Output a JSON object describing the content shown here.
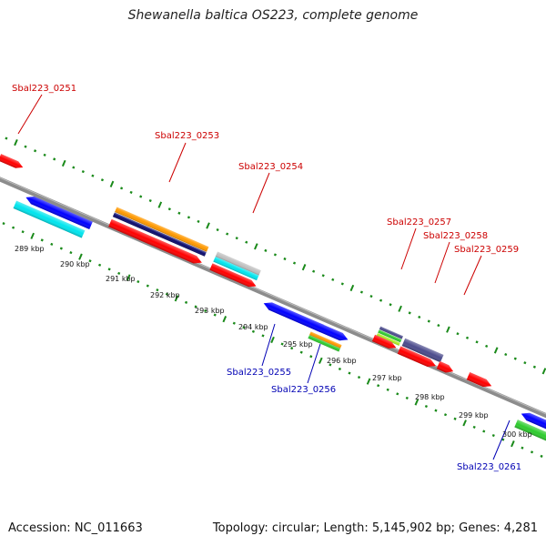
{
  "title": "Shewanella baltica OS223, complete genome",
  "footer": {
    "accession": "Accession: NC_011663",
    "summary": "Topology: circular; Length: 5,145,902 bp; Genes: 4,281"
  },
  "colors": {
    "background": "#ffffff",
    "backbone": "#8c8c8c",
    "tick_marks": "#1a8a1a",
    "label_top": "#cc0000",
    "label_bottom": "#0000b4",
    "gene_red": "#ff0000",
    "gene_blue": "#0000ff",
    "gene_cyan": "#00e5ee",
    "gene_orange": "#ff9900",
    "gene_navy": "#0b0b6e",
    "gene_gray": "#c0c0c0",
    "gene_slate": "#4b4b8c",
    "gene_green": "#2ecc2e",
    "gene_lime": "#aaee22"
  },
  "scale_labels": [
    "289 kbp",
    "290 kbp",
    "291 kbp",
    "292 kbp",
    "293 kbp",
    "294 kbp",
    "295 kbp",
    "296 kbp",
    "297 kbp",
    "298 kbp",
    "299 kbp",
    "300 kbp"
  ],
  "gene_labels_top": [
    "Sbal223_0251",
    "Sbal223_0253",
    "Sbal223_0254",
    "Sbal223_0257",
    "Sbal223_0258",
    "Sbal223_0259"
  ],
  "gene_labels_bottom": [
    "Sbal223_0255",
    "Sbal223_0256",
    "Sbal223_0261"
  ]
}
